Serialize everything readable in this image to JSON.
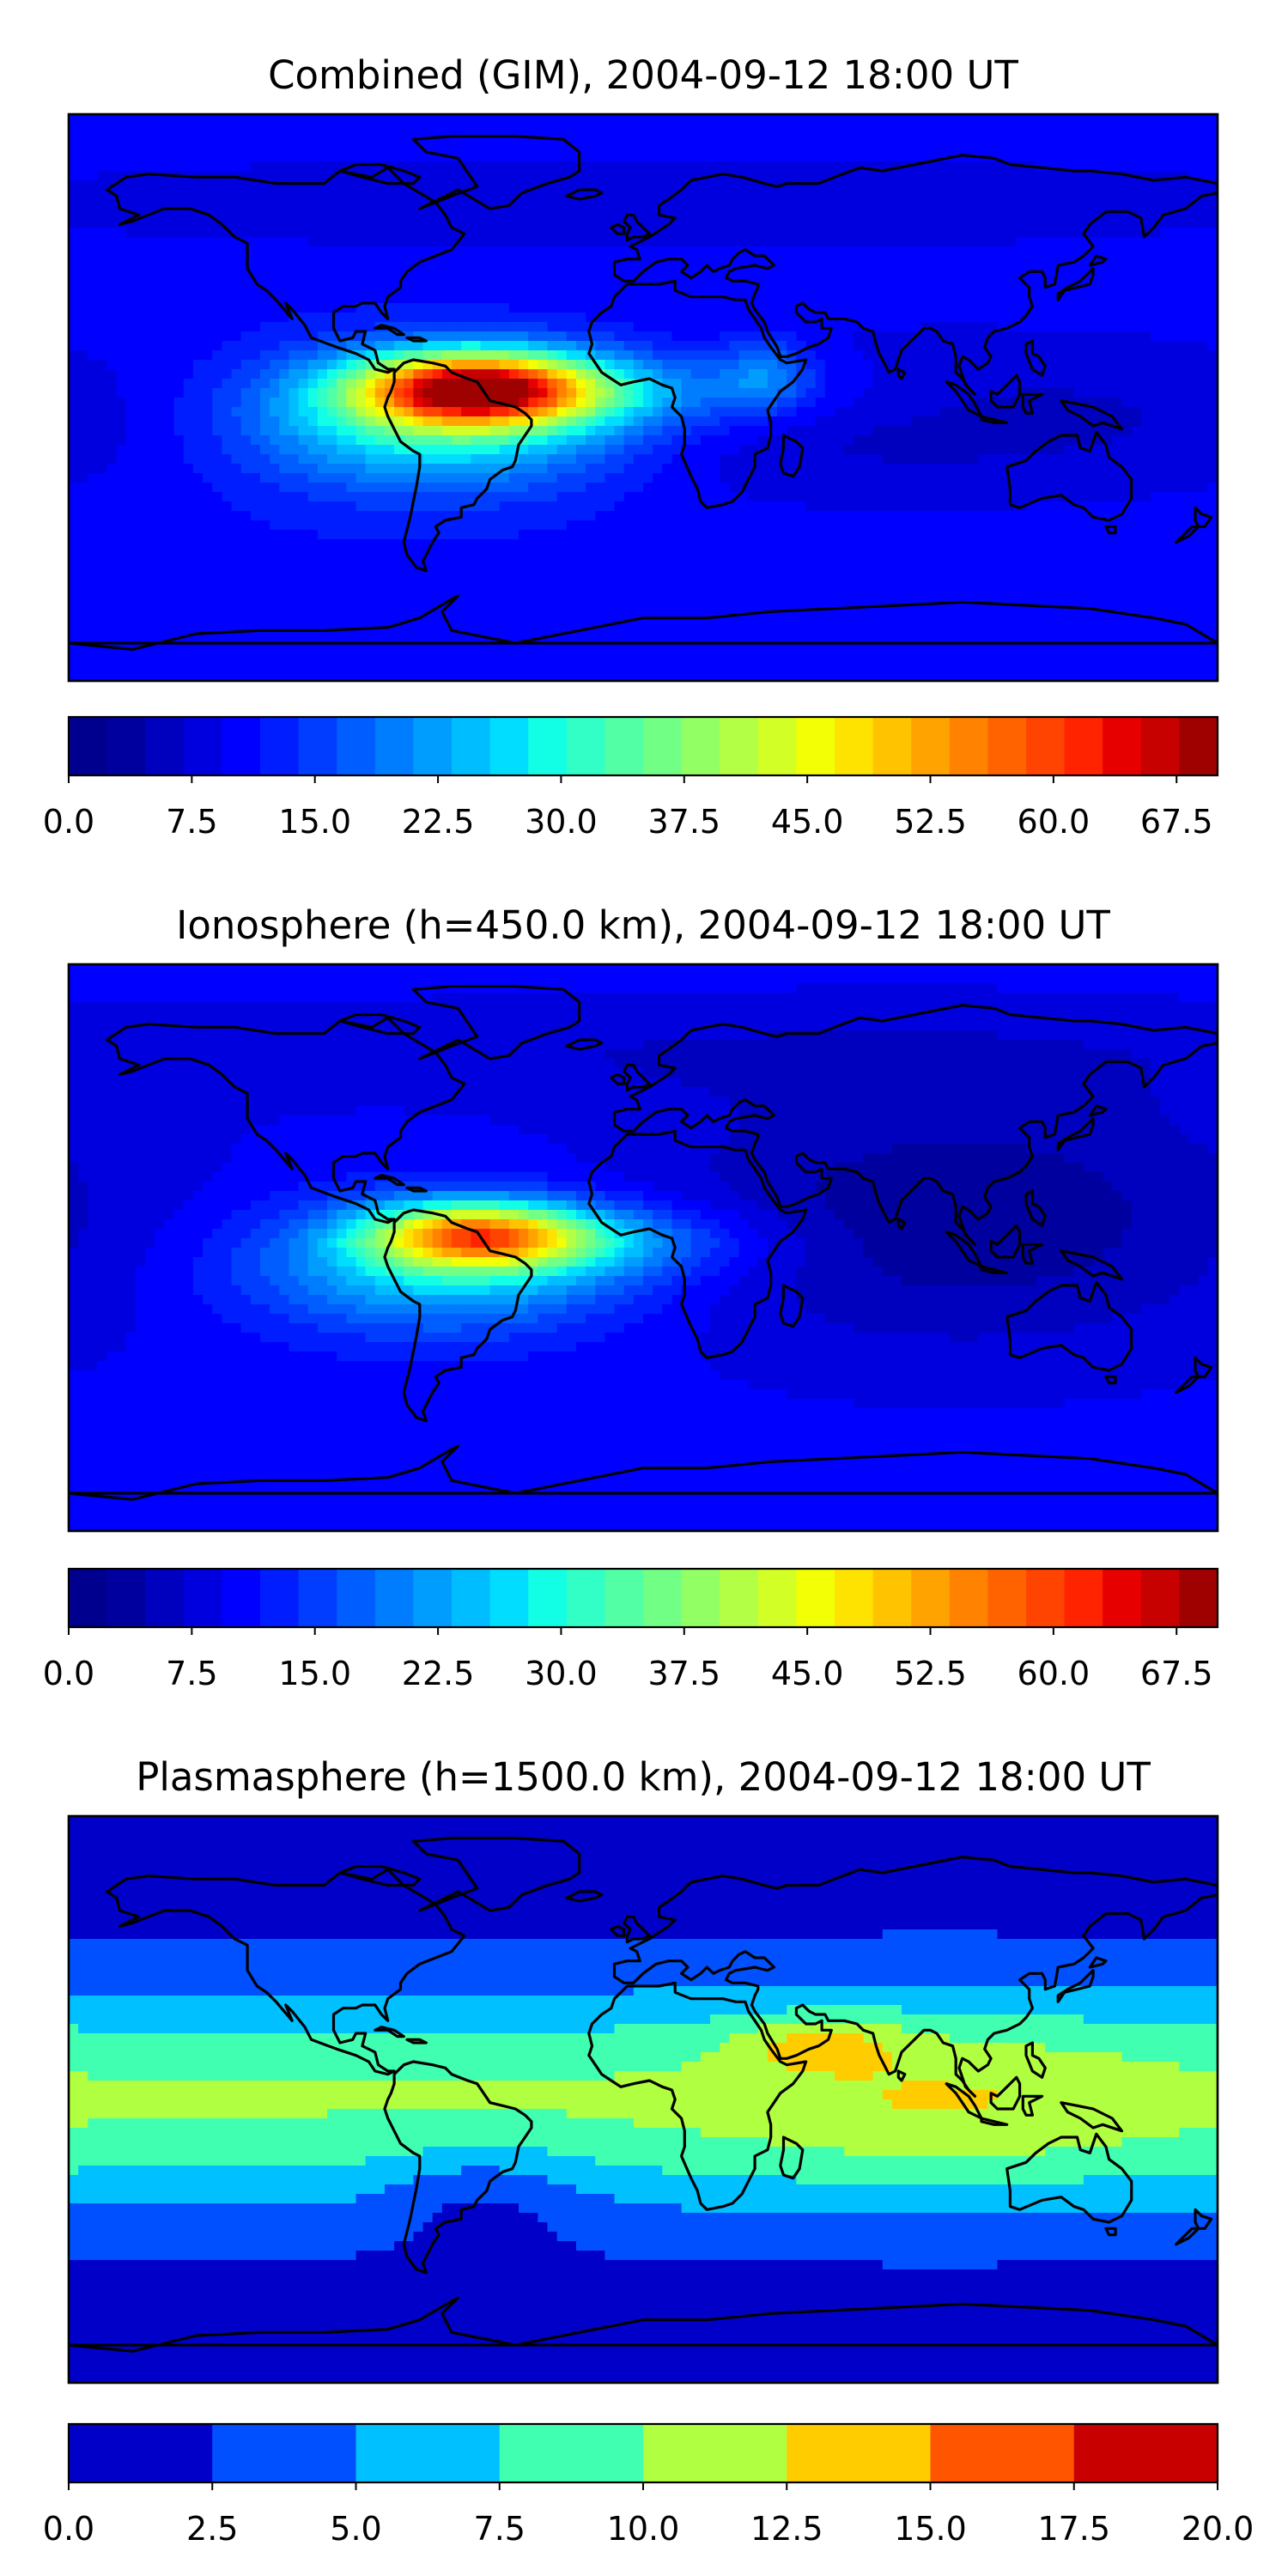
{
  "chart_data": [
    {
      "type": "heatmap",
      "title": "Combined (GIM), 2004-09-12 18:00 UT",
      "colorbar": {
        "min": 0,
        "max": 70,
        "step": 2.5,
        "tick_labels": [
          "0.0",
          "7.5",
          "15.0",
          "22.5",
          "30.0",
          "37.5",
          "45.0",
          "52.5",
          "60.0",
          "67.5"
        ],
        "colors": [
          "#00008f",
          "#00009f",
          "#0000bf",
          "#0000df",
          "#0000ff",
          "#001dff",
          "#003dff",
          "#005dff",
          "#007dff",
          "#009dff",
          "#00bdff",
          "#00ddff",
          "#12ffe5",
          "#32ffc5",
          "#52ffa5",
          "#72ff85",
          "#92ff65",
          "#b2ff45",
          "#d2ff25",
          "#f2ff05",
          "#ffe300",
          "#ffc300",
          "#ffa300",
          "#ff8300",
          "#ff6300",
          "#ff4300",
          "#ff2300",
          "#e70000",
          "#c70000",
          "#9f0000"
        ]
      },
      "field": {
        "background": 12,
        "features": [
          {
            "lon": -52,
            "lat": 3,
            "amp": 50,
            "slon": 26,
            "slat": 8
          },
          {
            "lon": -62,
            "lat": -8,
            "amp": 23,
            "slon": 42,
            "slat": 15
          },
          {
            "lon": -10,
            "lat": 2,
            "amp": 10,
            "slon": 55,
            "slat": 9
          },
          {
            "lon": 38,
            "lat": 8,
            "amp": 9,
            "slon": 10,
            "slat": 8
          },
          {
            "lon": 70,
            "lat": -6,
            "amp": -6,
            "slon": 120,
            "slat": 20
          },
          {
            "lon": 0,
            "lat": 62,
            "amp": -4,
            "slon": 180,
            "slat": 12
          }
        ]
      }
    },
    {
      "type": "heatmap",
      "title": "Ionosphere  (h=450.0 km), 2004-09-12 18:00 UT",
      "colorbar": {
        "min": 0,
        "max": 70,
        "step": 2.5,
        "tick_labels": [
          "0.0",
          "7.5",
          "15.0",
          "22.5",
          "30.0",
          "37.5",
          "45.0",
          "52.5",
          "60.0",
          "67.5"
        ],
        "colors": [
          "#00008f",
          "#00009f",
          "#0000bf",
          "#0000df",
          "#0000ff",
          "#001dff",
          "#003dff",
          "#005dff",
          "#007dff",
          "#009dff",
          "#00bdff",
          "#00ddff",
          "#12ffe5",
          "#32ffc5",
          "#52ffa5",
          "#72ff85",
          "#92ff65",
          "#b2ff45",
          "#d2ff25",
          "#f2ff05",
          "#ffe300",
          "#ffc300",
          "#ffa300",
          "#ff8300",
          "#ff6300",
          "#ff4300",
          "#ff2300",
          "#e70000",
          "#c70000",
          "#9f0000"
        ]
      },
      "field": {
        "background": 11,
        "features": [
          {
            "lon": -52,
            "lat": 4,
            "amp": 38,
            "slon": 24,
            "slat": 7
          },
          {
            "lon": -62,
            "lat": -6,
            "amp": 18,
            "slon": 42,
            "slat": 14
          },
          {
            "lon": -10,
            "lat": 2,
            "amp": 9,
            "slon": 35,
            "slat": 8
          },
          {
            "lon": 100,
            "lat": 10,
            "amp": -8,
            "slon": 70,
            "slat": 30
          },
          {
            "lon": 0,
            "lat": 62,
            "amp": -3,
            "slon": 180,
            "slat": 12
          }
        ]
      }
    },
    {
      "type": "heatmap",
      "title": "Plasmasphere (h=1500.0 km), 2004-09-12 18:00 UT",
      "colorbar": {
        "min": 0,
        "max": 20,
        "step": 2.5,
        "tick_labels": [
          "0.0",
          "2.5",
          "5.0",
          "7.5",
          "10.0",
          "12.5",
          "15.0",
          "17.5",
          "20.0"
        ],
        "colors": [
          "#0000c8",
          "#0050ff",
          "#00c0ff",
          "#40ffb0",
          "#b0ff40",
          "#ffcc00",
          "#ff5500",
          "#c80000"
        ]
      },
      "field": {
        "background": 1.2,
        "features": [
          {
            "lon": 0,
            "lat": 0,
            "amp": 9,
            "slon": 1000,
            "slat": 26
          },
          {
            "lon": 55,
            "lat": 18,
            "amp": 4.5,
            "slon": 18,
            "slat": 6
          },
          {
            "lon": 95,
            "lat": 0,
            "amp": 2.5,
            "slon": 45,
            "slat": 22
          },
          {
            "lon": -50,
            "lat": -30,
            "amp": -3,
            "slon": 22,
            "slat": 12
          }
        ]
      }
    }
  ]
}
